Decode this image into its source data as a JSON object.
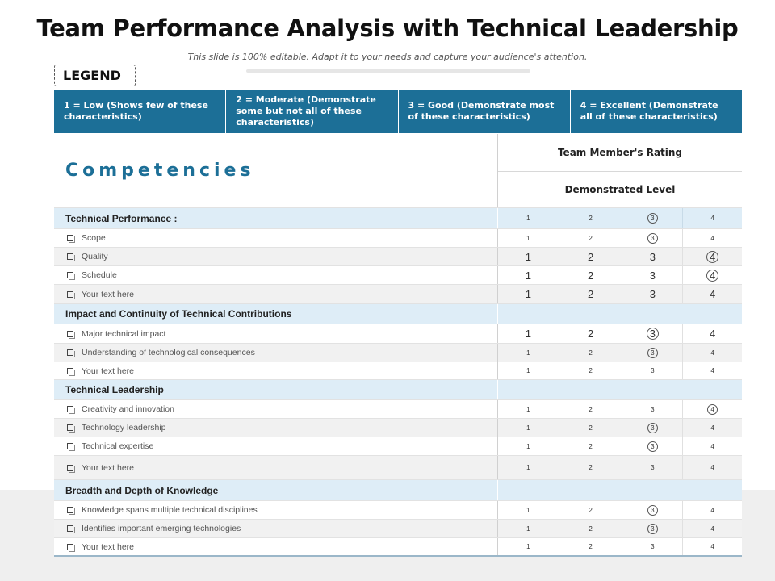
{
  "title": "Team Performance Analysis with Technical Leadership",
  "subtitle": "This slide is 100% editable. Adapt it to your needs and capture your audience's attention.",
  "legend": {
    "tag": "LEGEND",
    "items": [
      "1 = Low (Shows few of these characteristics)",
      "2 = Moderate (Demonstrate some but not all of these characteristics)",
      "3 = Good (Demonstrate most of these characteristics)",
      "4 = Excellent (Demonstrate all of these characteristics)"
    ]
  },
  "table": {
    "competencies_label": "Competencies",
    "rating_header": "Team Member's Rating",
    "level_header": "Demonstrated Level",
    "sections": [
      {
        "title": "Technical Performance :",
        "show_scale": true,
        "scale_selected": 3,
        "items": [
          {
            "label": "Scope",
            "selected": 3,
            "size": "small"
          },
          {
            "label": "Quality",
            "selected": 4,
            "size": "large"
          },
          {
            "label": "Schedule",
            "selected": 4,
            "size": "large"
          },
          {
            "label": "Your text here",
            "selected": null,
            "size": "large"
          }
        ]
      },
      {
        "title": "Impact and Continuity of Technical Contributions",
        "show_scale": false,
        "items": [
          {
            "label": "Major technical impact",
            "selected": 3,
            "size": "large"
          },
          {
            "label": "Understanding of technological consequences",
            "selected": 3,
            "size": "small"
          },
          {
            "label": "Your text here",
            "selected": null,
            "size": "small"
          }
        ]
      },
      {
        "title": "Technical Leadership",
        "show_scale": false,
        "items": [
          {
            "label": "Creativity and innovation",
            "selected": 4,
            "size": "small"
          },
          {
            "label": "Technology leadership",
            "selected": 3,
            "size": "small"
          },
          {
            "label": "Technical expertise",
            "selected": 3,
            "size": "small"
          },
          {
            "label": "Your text here",
            "selected": null,
            "size": "small"
          }
        ]
      },
      {
        "title": "Breadth and Depth of Knowledge",
        "show_scale": false,
        "items": [
          {
            "label": "Knowledge spans multiple technical disciplines",
            "selected": 3,
            "size": "small"
          },
          {
            "label": "Identifies important emerging technologies",
            "selected": 3,
            "size": "small"
          },
          {
            "label": "Your text here",
            "selected": null,
            "size": "small"
          }
        ]
      }
    ],
    "scale": [
      "1",
      "2",
      "3",
      "4"
    ]
  },
  "colors": {
    "accent": "#1c6f97",
    "section_bg": "#deedf7",
    "alt_row_bg": "#f1f1f1"
  }
}
